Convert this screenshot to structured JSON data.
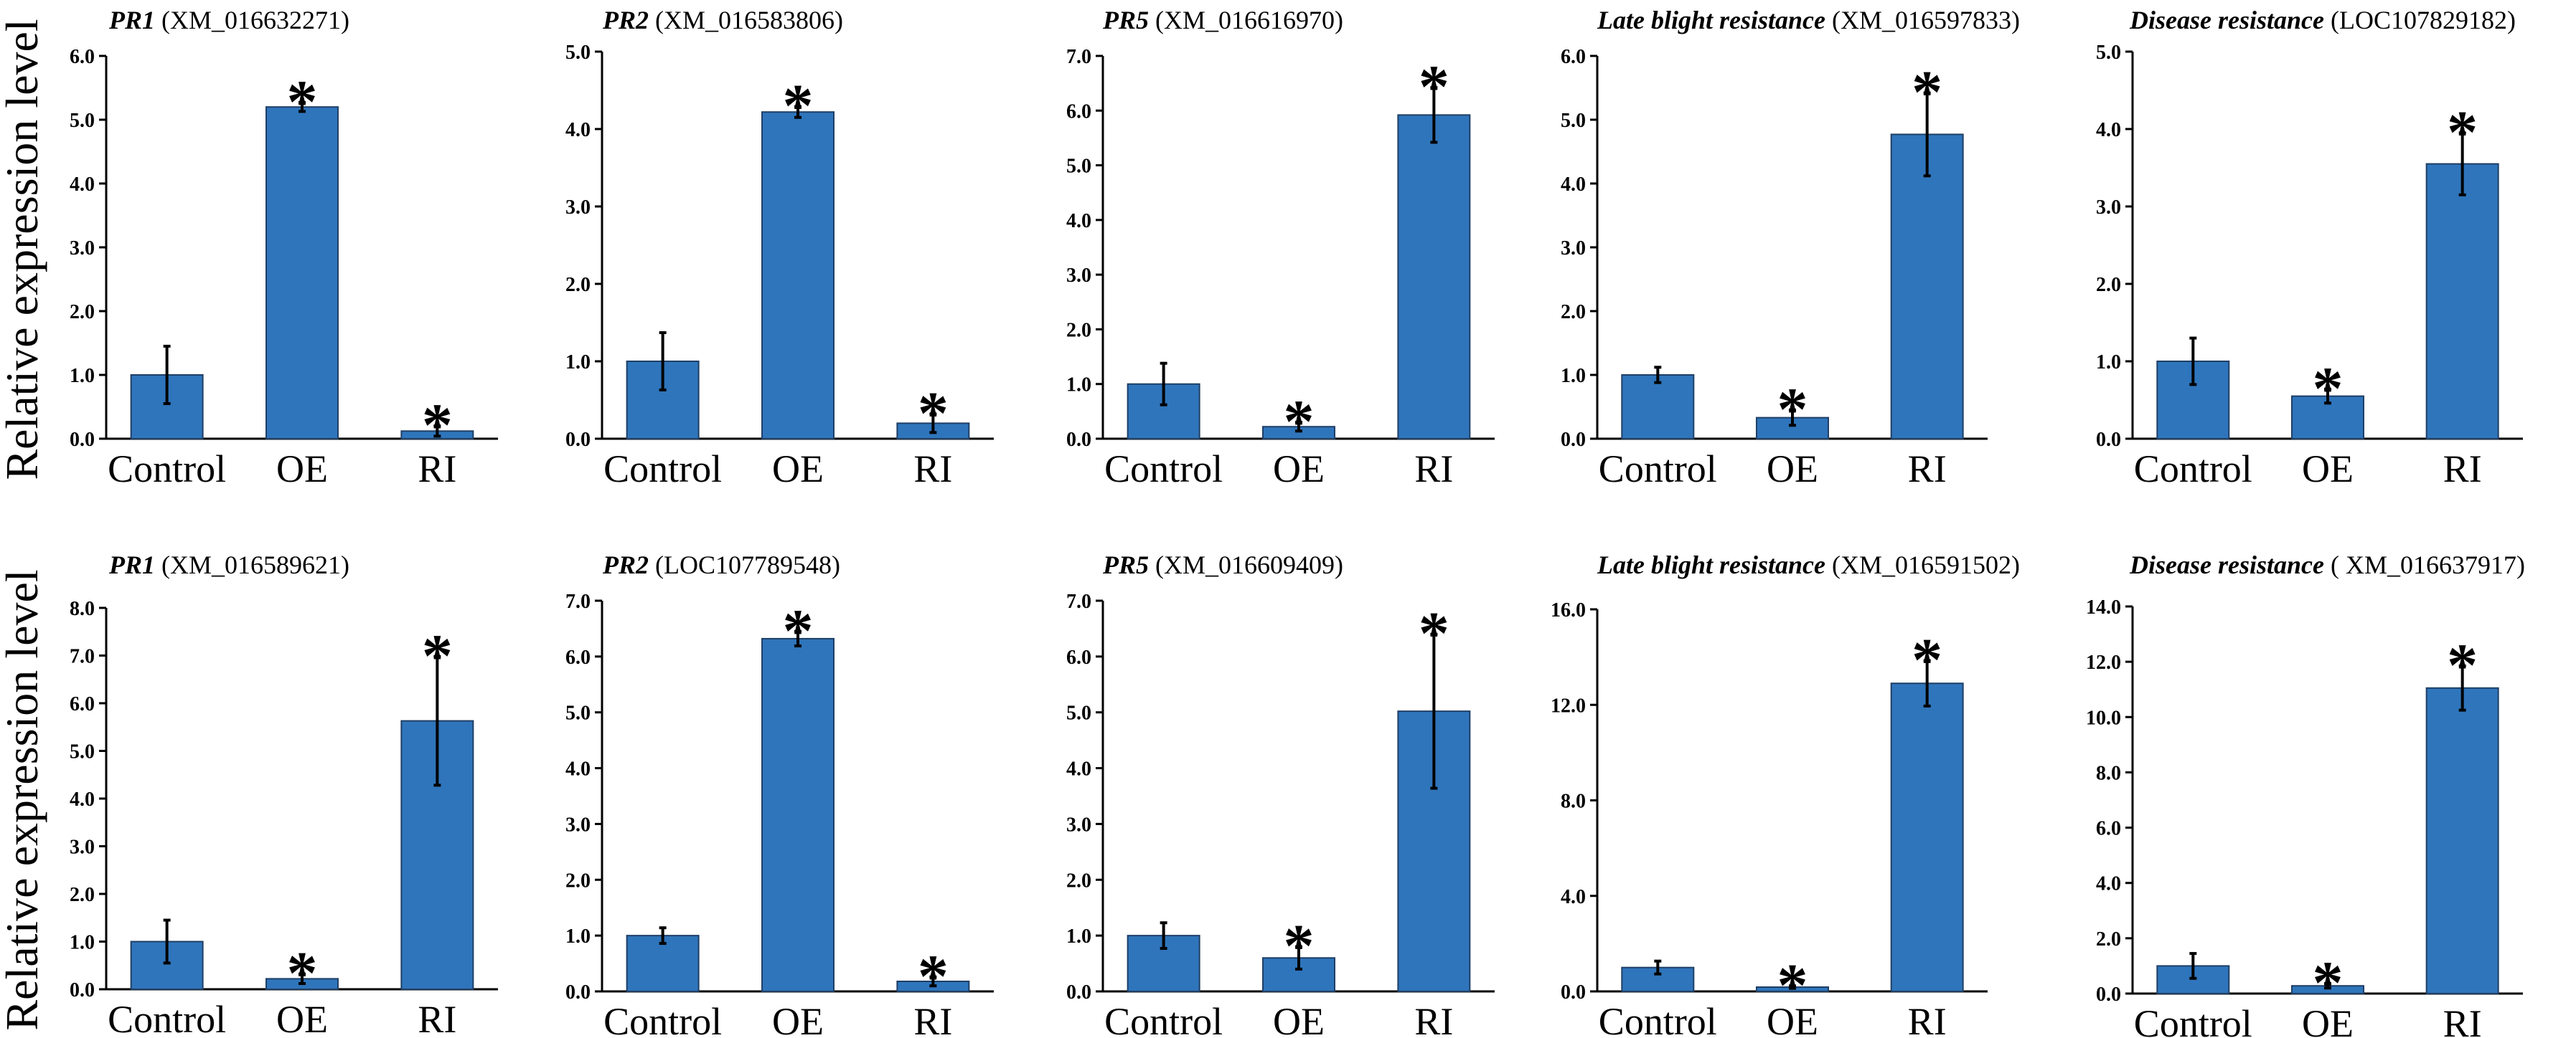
{
  "figure": {
    "ylabel": "Relative expression level",
    "bar_color": "#2f75bb",
    "significance_mark": "*"
  },
  "chart_data": [
    {
      "type": "bar",
      "title_gene": "PR1",
      "title_id": "(XM_016632271)",
      "categories": [
        "Control",
        "OE",
        "RI"
      ],
      "values": [
        1.0,
        5.2,
        0.12
      ],
      "errors": [
        0.45,
        0.07,
        0.08
      ],
      "significant": [
        false,
        true,
        true
      ],
      "ylim": [
        0,
        6.0
      ],
      "yticks": [
        "0.0",
        "1.0",
        "2.0",
        "3.0",
        "4.0",
        "5.0",
        "6.0"
      ]
    },
    {
      "type": "bar",
      "title_gene": "PR2",
      "title_id": "(XM_016583806)",
      "categories": [
        "Control",
        "OE",
        "RI"
      ],
      "values": [
        1.0,
        4.22,
        0.2
      ],
      "errors": [
        0.37,
        0.07,
        0.12
      ],
      "significant": [
        false,
        true,
        true
      ],
      "ylim": [
        0,
        5.0
      ],
      "yticks": [
        "0.0",
        "1.0",
        "2.0",
        "3.0",
        "4.0",
        "5.0"
      ]
    },
    {
      "type": "bar",
      "title_gene": "PR5",
      "title_id": "(XM_016616970)",
      "categories": [
        "Control",
        "OE",
        "RI"
      ],
      "values": [
        1.0,
        0.22,
        5.92
      ],
      "errors": [
        0.38,
        0.08,
        0.5
      ],
      "significant": [
        false,
        true,
        true
      ],
      "ylim": [
        0,
        7.0
      ],
      "yticks": [
        "0.0",
        "1.0",
        "2.0",
        "3.0",
        "4.0",
        "5.0",
        "6.0",
        "7.0"
      ]
    },
    {
      "type": "bar",
      "title_gene": "Late blight resistance",
      "title_id": "(XM_016597833)",
      "categories": [
        "Control",
        "OE",
        "RI"
      ],
      "values": [
        1.0,
        0.33,
        4.77
      ],
      "errors": [
        0.12,
        0.12,
        0.65
      ],
      "significant": [
        false,
        true,
        true
      ],
      "ylim": [
        0,
        6.0
      ],
      "yticks": [
        "0.0",
        "1.0",
        "2.0",
        "3.0",
        "4.0",
        "5.0",
        "6.0"
      ]
    },
    {
      "type": "bar",
      "title_gene": "Disease resistance",
      "title_id": "(LOC107829182)",
      "categories": [
        "Control",
        "OE",
        "RI"
      ],
      "values": [
        1.0,
        0.55,
        3.55
      ],
      "errors": [
        0.3,
        0.09,
        0.4
      ],
      "significant": [
        false,
        true,
        true
      ],
      "ylim": [
        0,
        5.0
      ],
      "yticks": [
        "0.0",
        "1.0",
        "2.0",
        "3.0",
        "4.0",
        "5.0"
      ]
    },
    {
      "type": "bar",
      "title_gene": "PR1",
      "title_id": "(XM_016589621)",
      "categories": [
        "Control",
        "OE",
        "RI"
      ],
      "values": [
        1.0,
        0.22,
        5.63
      ],
      "errors": [
        0.45,
        0.1,
        1.35
      ],
      "significant": [
        false,
        true,
        true
      ],
      "ylim": [
        0,
        8.0
      ],
      "yticks": [
        "0.0",
        "1.0",
        "2.0",
        "3.0",
        "4.0",
        "5.0",
        "6.0",
        "7.0",
        "8.0"
      ]
    },
    {
      "type": "bar",
      "title_gene": "PR2",
      "title_id": "(LOC107789548)",
      "categories": [
        "Control",
        "OE",
        "RI"
      ],
      "values": [
        1.0,
        6.32,
        0.18
      ],
      "errors": [
        0.14,
        0.13,
        0.08
      ],
      "significant": [
        false,
        true,
        true
      ],
      "ylim": [
        0,
        7.0
      ],
      "yticks": [
        "0.0",
        "1.0",
        "2.0",
        "3.0",
        "4.0",
        "5.0",
        "6.0",
        "7.0"
      ]
    },
    {
      "type": "bar",
      "title_gene": "PR5",
      "title_id": "(XM_016609409)",
      "categories": [
        "Control",
        "OE",
        "RI"
      ],
      "values": [
        1.0,
        0.6,
        5.02
      ],
      "errors": [
        0.23,
        0.2,
        1.38
      ],
      "significant": [
        false,
        true,
        true
      ],
      "ylim": [
        0,
        7.0
      ],
      "yticks": [
        "0.0",
        "1.0",
        "2.0",
        "3.0",
        "4.0",
        "5.0",
        "6.0",
        "7.0"
      ]
    },
    {
      "type": "bar",
      "title_gene": "Late blight resistance",
      "title_id": "(XM_016591502)",
      "categories": [
        "Control",
        "OE",
        "RI"
      ],
      "values": [
        1.0,
        0.18,
        12.9
      ],
      "errors": [
        0.27,
        0.05,
        0.95
      ],
      "significant": [
        false,
        true,
        true
      ],
      "ylim": [
        0,
        16.0
      ],
      "yticks": [
        "0.0",
        "4.0",
        "8.0",
        "12.0",
        "16.0"
      ]
    },
    {
      "type": "bar",
      "title_gene": "Disease resistance",
      "title_id": "( XM_016637917)",
      "categories": [
        "Control",
        "OE",
        "RI"
      ],
      "values": [
        1.0,
        0.28,
        11.05
      ],
      "errors": [
        0.45,
        0.08,
        0.8
      ],
      "significant": [
        false,
        true,
        true
      ],
      "ylim": [
        0,
        14.0
      ],
      "yticks": [
        "0.0",
        "2.0",
        "4.0",
        "6.0",
        "8.0",
        "10.0",
        "12.0",
        "14.0"
      ]
    }
  ]
}
